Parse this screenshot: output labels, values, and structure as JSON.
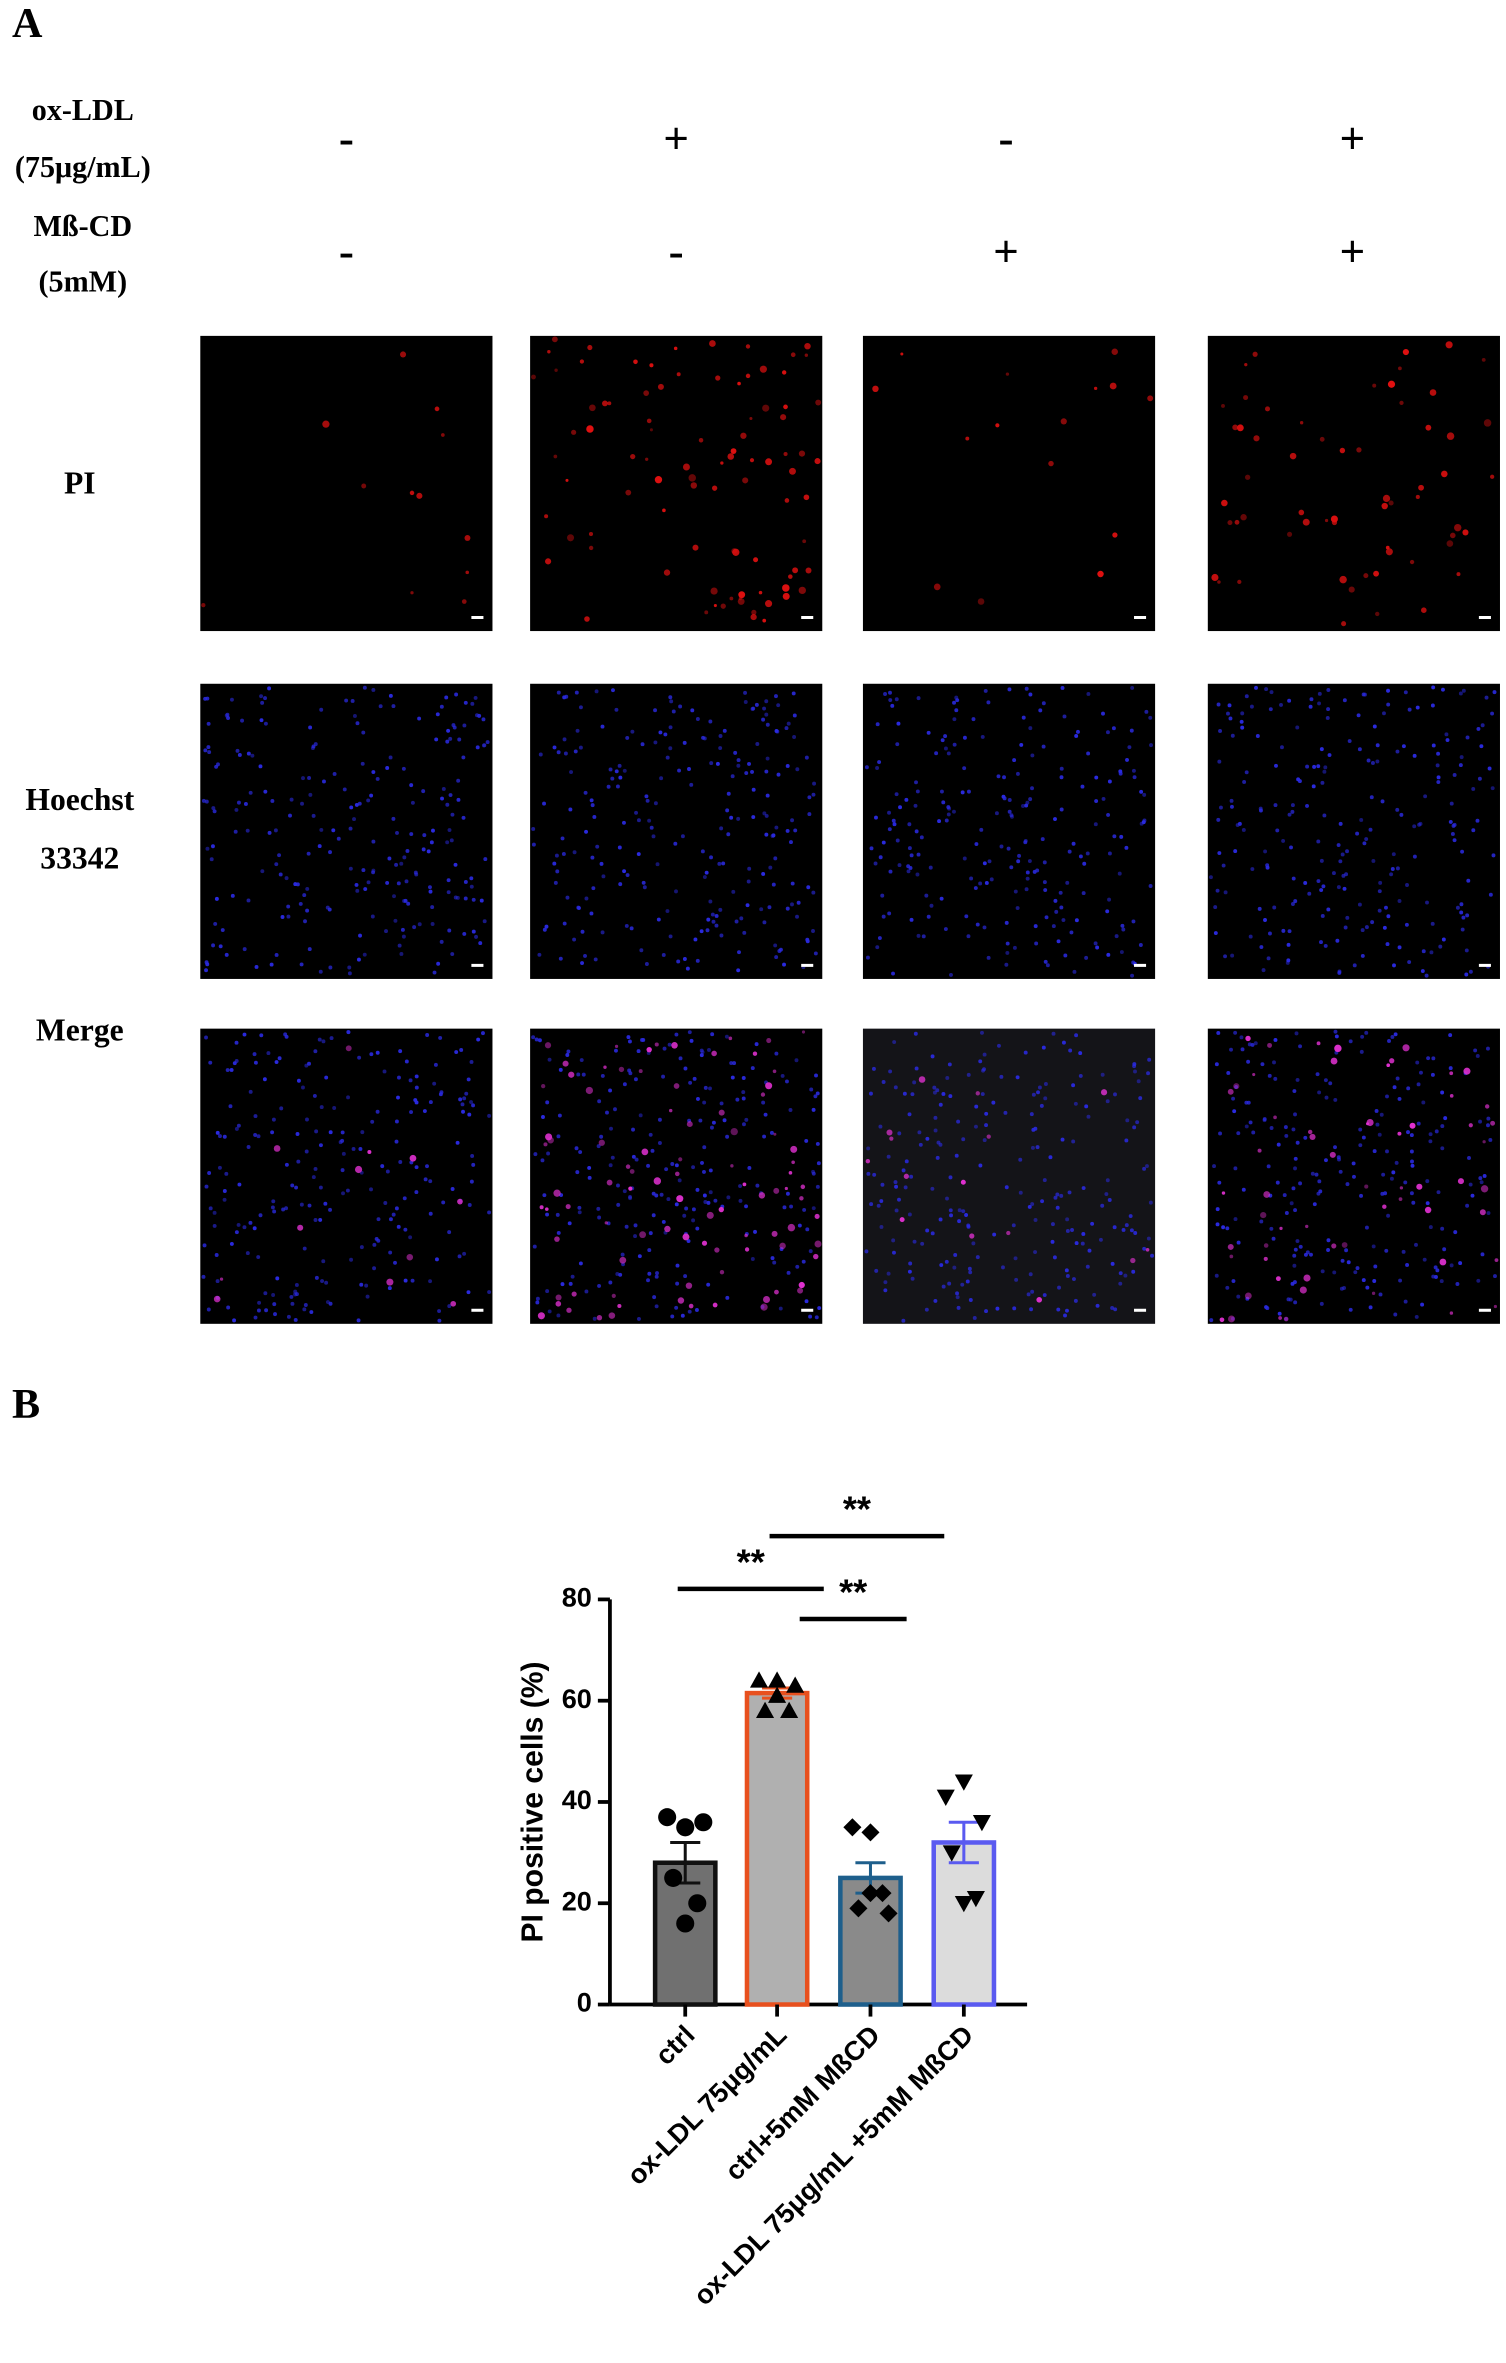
{
  "panel_a": {
    "label": "A",
    "conditions": [
      {
        "name": "ox-LDL",
        "dose": "(75μg/mL)",
        "signs": [
          "-",
          "+",
          "-",
          "+"
        ]
      },
      {
        "name": "Mß-CD",
        "dose": "(5mM)",
        "signs": [
          "-",
          "-",
          "+",
          "+"
        ]
      }
    ],
    "rows": [
      [
        "PI"
      ],
      [
        "Hoechst",
        "33342"
      ],
      [
        "Merge"
      ]
    ]
  },
  "chart_data": {
    "type": "bar",
    "panel_label": "B",
    "y_label": "PI positive cells (%)",
    "categories": [
      "ctrl",
      "ox-LDL 75μg/mL",
      "ctrl+5mM MßCD",
      "ox-LDL 75μg/mL +5mM MßCD"
    ],
    "values": [
      28,
      61.5,
      25,
      32
    ],
    "errors": [
      4,
      1,
      3,
      4
    ],
    "points": [
      [
        37,
        35,
        36,
        25,
        20,
        16
      ],
      [
        64,
        64,
        63,
        58,
        58,
        61
      ],
      [
        35,
        34,
        18,
        19,
        22,
        22
      ],
      [
        41,
        44,
        36,
        30,
        21,
        20
      ]
    ],
    "markers": [
      "circle",
      "triangle",
      "diamond",
      "triangle-down"
    ],
    "fill_colors": [
      "#707070",
      "#b0b0b0",
      "#8a8a8a",
      "#dcdcdc"
    ],
    "edge_colors": [
      "#111111",
      "#e8501e",
      "#1e5f8c",
      "#5a5af0"
    ],
    "ylim": [
      0,
      80
    ],
    "yticks": [
      0,
      20,
      40,
      60,
      80
    ],
    "comparisons": [
      {
        "groups": [
          "ctrl",
          "ox-LDL 75μg/mL"
        ],
        "label": "**"
      },
      {
        "groups": [
          "ox-LDL 75μg/mL",
          "ctrl+5mM MßCD"
        ],
        "label": "**"
      },
      {
        "groups": [
          "ox-LDL 75μg/mL",
          "ox-LDL 75μg/mL +5mM MßCD"
        ],
        "label": "**"
      }
    ]
  }
}
